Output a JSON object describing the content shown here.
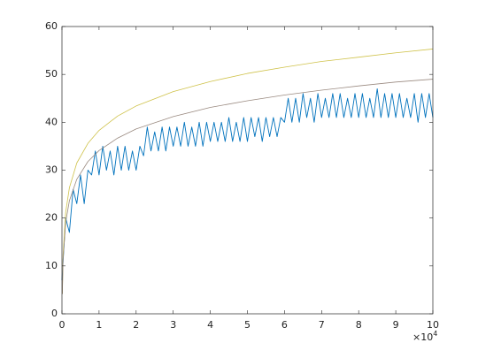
{
  "chart_data": {
    "type": "line",
    "xlim": [
      0,
      100000
    ],
    "xticks": [
      {
        "value": 0,
        "label": "0"
      },
      {
        "value": 10000,
        "label": "1"
      },
      {
        "value": 20000,
        "label": "2"
      },
      {
        "value": 30000,
        "label": "3"
      },
      {
        "value": 40000,
        "label": "4"
      },
      {
        "value": 50000,
        "label": "5"
      },
      {
        "value": 60000,
        "label": "6"
      },
      {
        "value": 70000,
        "label": "7"
      },
      {
        "value": 80000,
        "label": "8"
      },
      {
        "value": 90000,
        "label": "9"
      },
      {
        "value": 100000,
        "label": "10"
      }
    ],
    "x_multiplier_base": "×10",
    "x_multiplier_exponent": "4",
    "ylim": [
      0,
      60
    ],
    "yticks": [
      0,
      10,
      20,
      30,
      40,
      50,
      60
    ],
    "grid": false,
    "series": [
      {
        "color": "#0072bd",
        "x": [
          0,
          1000,
          2000,
          3000,
          4000,
          5000,
          6000,
          7000,
          8000,
          9000,
          10000,
          11000,
          12000,
          13000,
          14000,
          15000,
          16000,
          17000,
          18000,
          19000,
          20000,
          21000,
          22000,
          23000,
          24000,
          25000,
          26000,
          27000,
          28000,
          29000,
          30000,
          31000,
          32000,
          33000,
          34000,
          35000,
          36000,
          37000,
          38000,
          39000,
          40000,
          41000,
          42000,
          43000,
          44000,
          45000,
          46000,
          47000,
          48000,
          49000,
          50000,
          51000,
          52000,
          53000,
          54000,
          55000,
          56000,
          57000,
          58000,
          59000,
          60000,
          61000,
          62000,
          63000,
          64000,
          65000,
          66000,
          67000,
          68000,
          69000,
          70000,
          71000,
          72000,
          73000,
          74000,
          75000,
          76000,
          77000,
          78000,
          79000,
          80000,
          81000,
          82000,
          83000,
          84000,
          85000,
          86000,
          87000,
          88000,
          89000,
          90000,
          91000,
          92000,
          93000,
          94000,
          95000,
          96000,
          97000,
          98000,
          99000,
          100000
        ],
        "values": [
          7,
          20,
          17,
          26,
          23,
          29,
          23,
          30,
          29,
          34,
          29,
          35,
          30,
          34,
          29,
          35,
          30,
          35,
          30,
          34,
          30,
          35,
          33,
          39,
          34,
          38,
          34,
          39,
          34,
          39,
          35,
          39,
          35,
          40,
          35,
          39,
          35,
          40,
          35,
          40,
          36,
          40,
          36,
          40,
          36,
          41,
          36,
          40,
          36,
          41,
          36,
          41,
          37,
          41,
          36,
          41,
          37,
          41,
          37,
          41,
          40,
          45,
          40,
          45,
          40,
          46,
          41,
          45,
          40,
          46,
          41,
          45,
          41,
          46,
          41,
          46,
          41,
          45,
          41,
          46,
          41,
          46,
          41,
          45,
          41,
          47,
          41,
          46,
          41,
          46,
          41,
          46,
          41,
          45,
          41,
          46,
          40,
          46,
          41,
          46,
          41
        ]
      },
      {
        "color": "#cfc24a",
        "x": [
          100,
          300,
          1000,
          2000,
          4000,
          7000,
          10000,
          15000,
          20000,
          30000,
          40000,
          50000,
          60000,
          70000,
          80000,
          90000,
          100000
        ],
        "values": [
          4.2,
          12.3,
          21.2,
          26.3,
          31.5,
          35.6,
          38.3,
          41.3,
          43.4,
          46.4,
          48.5,
          50.2,
          51.5,
          52.7,
          53.6,
          54.5,
          55.3
        ]
      },
      {
        "color": "#9a8a80",
        "x": [
          100,
          300,
          1000,
          2000,
          4000,
          7000,
          10000,
          15000,
          20000,
          30000,
          40000,
          50000,
          60000,
          70000,
          80000,
          90000,
          100000
        ],
        "values": [
          4.1,
          11.3,
          19.1,
          23.6,
          28.1,
          31.8,
          34.1,
          36.7,
          38.6,
          41.2,
          43.1,
          44.5,
          45.7,
          46.7,
          47.6,
          48.4,
          49.0
        ]
      }
    ]
  }
}
